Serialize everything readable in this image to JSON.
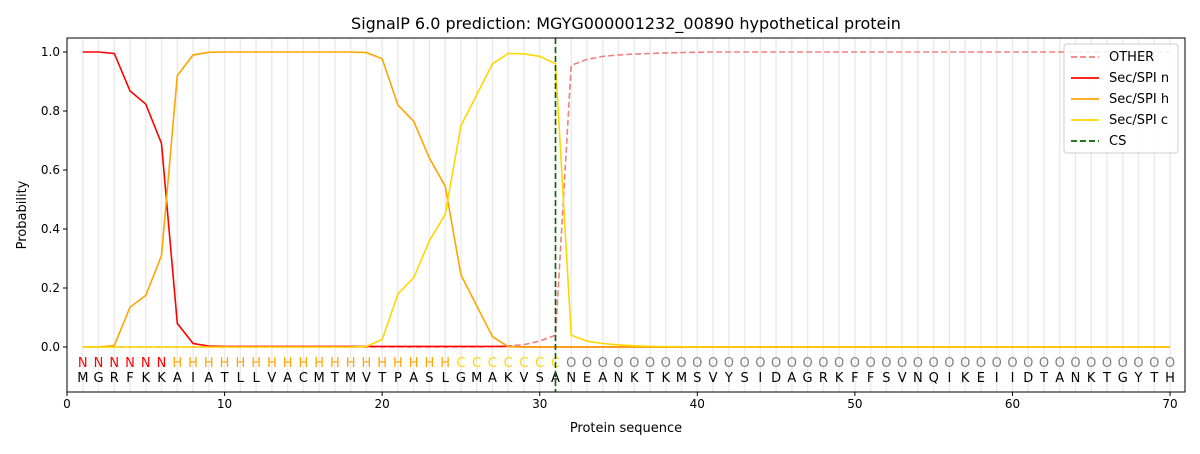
{
  "chart_data": {
    "type": "line",
    "title": "SignalP 6.0 prediction: MGYG000001232_00890 hypothetical protein",
    "xlabel": "Protein sequence",
    "ylabel": "Probability",
    "xlim": [
      0,
      71
    ],
    "ylim": [
      -0.15,
      1.05
    ],
    "xticks": [
      0,
      10,
      20,
      30,
      40,
      50,
      60,
      70
    ],
    "yticks": [
      "0.0",
      "0.2",
      "0.4",
      "0.6",
      "0.8",
      "1.0"
    ],
    "legend_position": "top-right",
    "sequence": "MGRFKKAIATLLVACMTMVTPASLGMAKVSANEANKTKMSVYSIDAGRKFFSVNQIKEIIDTANKTGYTH",
    "labels": "NNNNNNHHHHHHHHHHHHHHHHHHCCCCCCCOOOOOOOOOOOOOOOOOOOOOOOOOOOOOOOOOOOOOOO",
    "label_colors": {
      "N": "#ff0000",
      "H": "#ffa500",
      "C": "#ffd700",
      "O": "#808080"
    },
    "cs_position": 31,
    "series": [
      {
        "name": "OTHER",
        "color": "#f08080",
        "dash": true,
        "values": [
          0,
          0,
          0,
          0,
          0,
          0,
          0,
          0,
          0,
          0,
          0,
          0,
          0,
          0,
          0,
          0,
          0,
          0,
          0,
          0,
          0,
          0,
          0,
          0,
          0,
          0,
          0.001,
          0.003,
          0.008,
          0.02,
          0.04,
          0.955,
          0.975,
          0.985,
          0.99,
          0.993,
          0.995,
          0.997,
          0.998,
          0.999,
          1,
          1,
          1,
          1,
          1,
          1,
          1,
          1,
          1,
          1,
          1,
          1,
          1,
          1,
          1,
          1,
          1,
          1,
          1,
          1,
          1,
          1,
          1,
          1,
          1,
          1,
          1,
          1,
          1,
          1
        ]
      },
      {
        "name": "Sec/SPI n",
        "color": "#ff0000",
        "values": [
          1.0,
          1.0,
          0.995,
          0.868,
          0.823,
          0.69,
          0.08,
          0.012,
          0.003,
          0.002,
          0.002,
          0.002,
          0.002,
          0.002,
          0.002,
          0.002,
          0.002,
          0.002,
          0.002,
          0.002,
          0.002,
          0.002,
          0.002,
          0.002,
          0.002,
          0.002,
          0.002,
          0.002,
          0,
          0,
          0,
          0,
          0,
          0,
          0,
          0,
          0,
          0,
          0,
          0,
          0,
          0,
          0,
          0,
          0,
          0,
          0,
          0,
          0,
          0,
          0,
          0,
          0,
          0,
          0,
          0,
          0,
          0,
          0,
          0,
          0,
          0,
          0,
          0,
          0,
          0,
          0,
          0,
          0,
          0
        ]
      },
      {
        "name": "Sec/SPI h",
        "color": "#ffa500",
        "values": [
          0,
          0,
          0.005,
          0.135,
          0.175,
          0.31,
          0.92,
          0.99,
          0.999,
          1,
          1,
          1,
          1,
          1,
          1,
          1,
          1,
          1,
          0.998,
          0.977,
          0.82,
          0.765,
          0.64,
          0.545,
          0.245,
          0.14,
          0.035,
          0.001,
          0,
          0,
          0,
          0,
          0,
          0,
          0,
          0,
          0,
          0,
          0,
          0,
          0,
          0,
          0,
          0,
          0,
          0,
          0,
          0,
          0,
          0,
          0,
          0,
          0,
          0,
          0,
          0,
          0,
          0,
          0,
          0,
          0,
          0,
          0,
          0,
          0,
          0,
          0,
          0,
          0,
          0
        ]
      },
      {
        "name": "Sec/SPI c",
        "color": "#ffd700",
        "values": [
          0,
          0,
          0,
          0,
          0,
          0,
          0,
          0,
          0,
          0,
          0,
          0,
          0,
          0,
          0,
          0,
          0,
          0,
          0.002,
          0.025,
          0.18,
          0.235,
          0.36,
          0.45,
          0.75,
          0.855,
          0.96,
          0.995,
          0.994,
          0.985,
          0.96,
          0.04,
          0.02,
          0.012,
          0.007,
          0.004,
          0.002,
          0.001,
          0.001,
          0,
          0,
          0,
          0,
          0,
          0,
          0,
          0,
          0,
          0,
          0,
          0,
          0,
          0,
          0,
          0,
          0,
          0,
          0,
          0,
          0,
          0,
          0,
          0,
          0,
          0,
          0,
          0,
          0,
          0,
          0
        ]
      },
      {
        "name": "CS",
        "color": "#006400",
        "dash": true,
        "values": []
      }
    ]
  }
}
